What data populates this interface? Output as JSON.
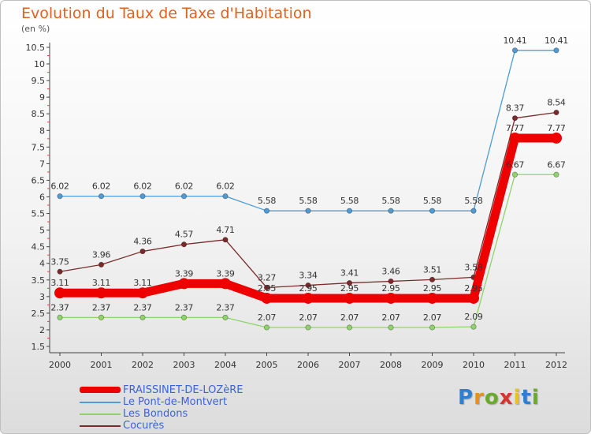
{
  "title": "Evolution du Taux de Taxe d'Habitation",
  "unit": "(en %)",
  "logo": "Proxiti",
  "chart_data": {
    "type": "line",
    "categories": [
      "2000",
      "2001",
      "2002",
      "2003",
      "2004",
      "2005",
      "2006",
      "2007",
      "2008",
      "2009",
      "2010",
      "2011",
      "2012"
    ],
    "y_ticks": [
      "1.5",
      "2",
      "2.5",
      "3",
      "3.5",
      "4",
      "4.5",
      "5",
      "5.5",
      "6",
      "6.5",
      "7",
      "7.5",
      "8",
      "8.5",
      "9",
      "9.5",
      "10",
      "10.5"
    ],
    "ylim": [
      1.5,
      10.5
    ],
    "grid": false,
    "legend_position": "bottom-left",
    "series": [
      {
        "name": "FRAISSINET-DE-LOZèRE",
        "color": "#ee0000",
        "values": [
          3.11,
          3.11,
          3.11,
          3.39,
          3.39,
          2.95,
          2.95,
          2.95,
          2.95,
          2.95,
          2.95,
          7.77,
          7.77
        ],
        "labels": [
          "3.11",
          "3.11",
          "3.11",
          "3.39",
          "3.39",
          "2.95",
          "2.95",
          "2.95",
          "2.95",
          "2.95",
          "2.95",
          "7.77",
          "7.77"
        ]
      },
      {
        "name": "Le Pont-de-Montvert",
        "color": "#4f9bd5",
        "values": [
          6.02,
          6.02,
          6.02,
          6.02,
          6.02,
          5.58,
          5.58,
          5.58,
          5.58,
          5.58,
          5.58,
          10.41,
          10.41
        ],
        "labels": [
          "6.02",
          "6.02",
          "6.02",
          "6.02",
          "6.02",
          "5.58",
          "5.58",
          "5.58",
          "5.58",
          "5.58",
          "5.58",
          "10.41",
          "10.41"
        ]
      },
      {
        "name": "Les Bondons",
        "color": "#8fd36b",
        "values": [
          2.37,
          2.37,
          2.37,
          2.37,
          2.37,
          2.07,
          2.07,
          2.07,
          2.07,
          2.07,
          2.09,
          6.67,
          6.67
        ],
        "labels": [
          "2.37",
          "2.37",
          "2.37",
          "2.37",
          "2.37",
          "2.07",
          "2.07",
          "2.07",
          "2.07",
          "2.07",
          "2.09",
          "6.67",
          "6.67"
        ]
      },
      {
        "name": "Cocurès",
        "color": "#7a2a2a",
        "values": [
          3.75,
          3.96,
          4.36,
          4.57,
          4.71,
          3.27,
          3.34,
          3.41,
          3.46,
          3.51,
          3.58,
          8.37,
          8.54
        ],
        "labels": [
          "3.75",
          "3.96",
          "4.36",
          "4.57",
          "4.71",
          "3.27",
          "3.34",
          "3.41",
          "3.46",
          "3.51",
          "3.58",
          "8.37",
          "8.54"
        ]
      }
    ]
  }
}
